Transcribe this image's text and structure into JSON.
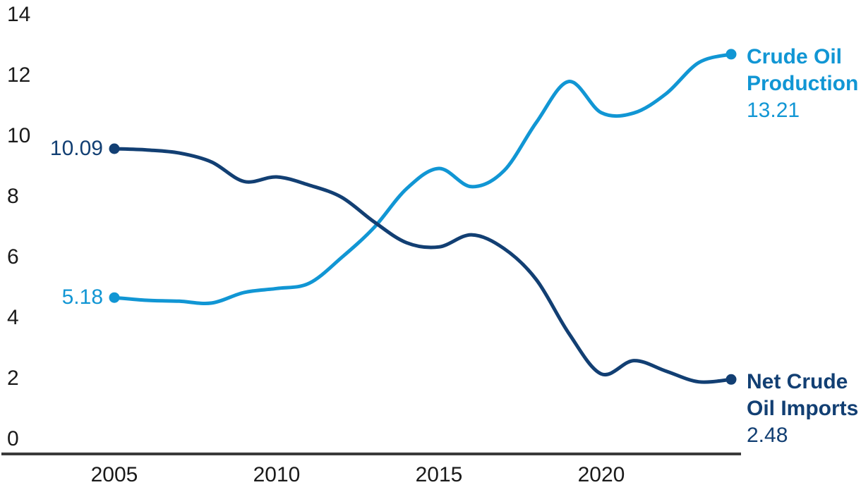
{
  "chart_data": {
    "type": "line",
    "title": "",
    "xlabel": "",
    "ylabel": "",
    "x": [
      2005,
      2006,
      2007,
      2008,
      2009,
      2010,
      2011,
      2012,
      2013,
      2014,
      2015,
      2016,
      2017,
      2018,
      2019,
      2020,
      2021,
      2022,
      2023,
      2024
    ],
    "x_tick_labels": [
      "2005",
      "2010",
      "2015",
      "2020"
    ],
    "y_tick_labels": [
      "0",
      "2",
      "4",
      "6",
      "8",
      "10",
      "12",
      "14"
    ],
    "y_ticks": [
      0,
      2,
      4,
      6,
      8,
      10,
      12,
      14
    ],
    "ylim": [
      0,
      14
    ],
    "grid": false,
    "legend_position": "end-of-line-labels",
    "smoothed_lines": true,
    "series": [
      {
        "name": "Crude Oil Production",
        "label_line1": "Crude Oil",
        "label_line2": "Production",
        "start_label": "5.18",
        "end_label": "13.21",
        "color": "#1196D4",
        "values": [
          5.18,
          5.09,
          5.06,
          5.0,
          5.35,
          5.48,
          5.65,
          6.5,
          7.49,
          8.77,
          9.44,
          8.84,
          9.36,
          10.96,
          12.31,
          11.28,
          11.27,
          11.91,
          12.93,
          13.21
        ]
      },
      {
        "name": "Net Crude Oil Imports",
        "label_line1": "Net Crude",
        "label_line2": "Oil Imports",
        "start_label": "10.09",
        "end_label": "2.48",
        "color": "#123F73",
        "values": [
          10.09,
          10.05,
          9.95,
          9.65,
          9.01,
          9.16,
          8.89,
          8.49,
          7.68,
          6.99,
          6.85,
          7.25,
          6.8,
          5.77,
          4.0,
          2.66,
          3.1,
          2.75,
          2.4,
          2.48
        ]
      }
    ],
    "colors": {
      "axis_line": "#3A3A3A",
      "tick_text": "#1A1A1A",
      "background": "#FFFFFF"
    }
  }
}
